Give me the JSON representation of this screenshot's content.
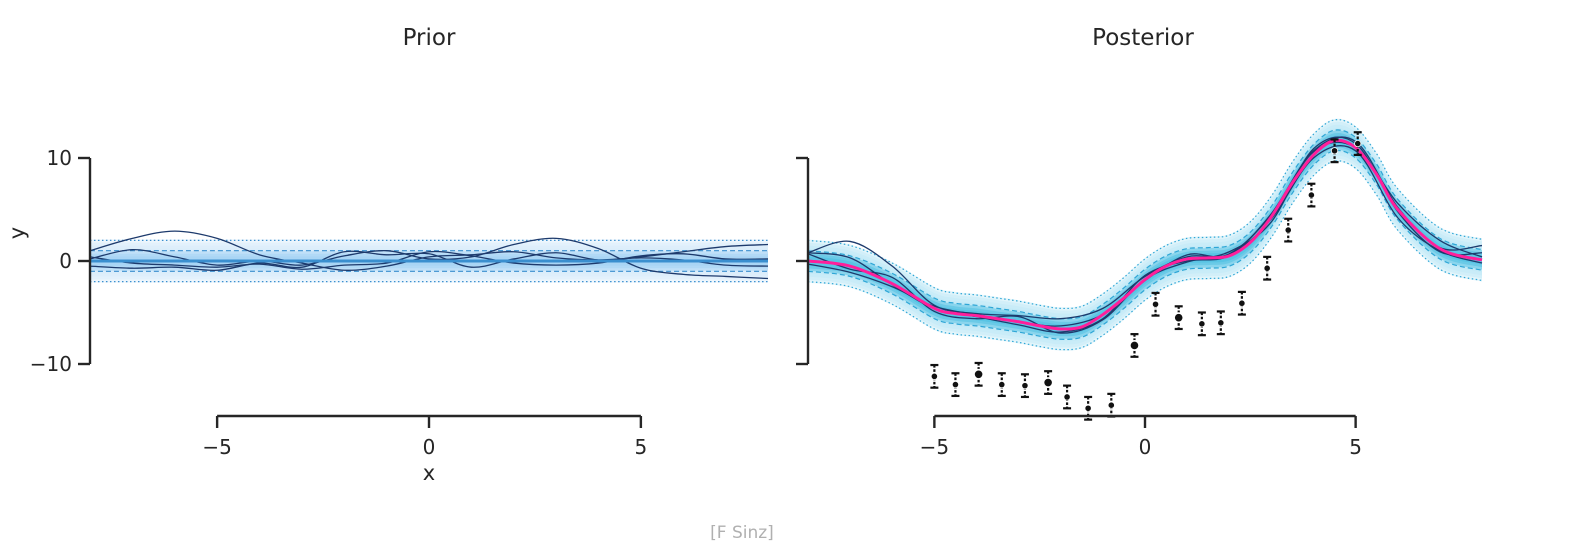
{
  "figure": {
    "credit": "[F Sinz]"
  },
  "chart_data": [
    {
      "type": "line",
      "title": "Prior",
      "xlabel": "x",
      "ylabel": "y",
      "xlim": [
        -8,
        8
      ],
      "ylim": [
        -10,
        10
      ],
      "x_ticks": [
        -5,
        0,
        5
      ],
      "x_tick_labels": [
        "−5",
        "0",
        "5"
      ],
      "y_ticks": [
        -10,
        0,
        10
      ],
      "y_tick_labels": [
        "−10",
        "0",
        "10"
      ],
      "grid": false,
      "legend": "none",
      "mean": {
        "x": [
          -8,
          8
        ],
        "y": [
          0,
          0
        ]
      },
      "band_std": 1.0,
      "band_levels_std": [
        1,
        2
      ],
      "samples": [
        {
          "x": [
            -8,
            -7,
            -6,
            -5,
            -4,
            -3,
            -2,
            -1,
            0,
            1,
            2,
            3,
            4,
            5,
            6,
            7,
            8
          ],
          "y": [
            1.0,
            2.2,
            2.9,
            2.2,
            0.6,
            -0.2,
            -0.9,
            -0.5,
            0.4,
            0.6,
            0.9,
            0.3,
            0.1,
            0.3,
            0.1,
            -0.4,
            -0.5
          ]
        },
        {
          "x": [
            -8,
            -7,
            -6,
            -5,
            -4,
            -3,
            -2,
            -1,
            0,
            1,
            2,
            3,
            4,
            5,
            6,
            7,
            8
          ],
          "y": [
            0.2,
            1.1,
            0.4,
            -0.4,
            0.0,
            -0.4,
            0.5,
            1.0,
            0.2,
            0.4,
            1.6,
            2.2,
            1.2,
            -0.7,
            -1.3,
            -1.5,
            -1.7
          ]
        },
        {
          "x": [
            -8,
            -7,
            -6,
            -5,
            -4,
            -3,
            -2,
            -1,
            0,
            1,
            2,
            3,
            4,
            5,
            6,
            7,
            8
          ],
          "y": [
            -0.5,
            -0.7,
            -0.6,
            -0.9,
            -0.2,
            -0.6,
            0.9,
            0.6,
            0.7,
            -0.6,
            0.2,
            0.8,
            0.1,
            0.4,
            0.9,
            1.4,
            1.6
          ]
        },
        {
          "x": [
            -8,
            -7,
            -6,
            -5,
            -4,
            -3,
            -2,
            -1,
            0,
            1,
            2,
            3,
            4,
            5,
            6,
            7,
            8
          ],
          "y": [
            0.4,
            -0.2,
            -0.4,
            -0.6,
            -0.3,
            -0.8,
            -0.4,
            -0.2,
            0.9,
            0.5,
            -0.2,
            -0.4,
            -0.2,
            0.5,
            0.7,
            0.2,
            0.2
          ]
        }
      ]
    },
    {
      "type": "line",
      "title": "Posterior",
      "xlabel": "",
      "ylabel": "",
      "xlim": [
        -8,
        8
      ],
      "ylim": [
        -10,
        10
      ],
      "x_ticks": [
        -5,
        0,
        5
      ],
      "x_tick_labels": [
        "−5",
        "0",
        "5"
      ],
      "y_ticks": [
        -10,
        0,
        10
      ],
      "grid": false,
      "legend": "none",
      "mean": {
        "x": [
          -8,
          -7,
          -6,
          -5,
          -4.5,
          -4,
          -3.5,
          -3,
          -2.5,
          -2,
          -1.5,
          -1,
          -0.5,
          0,
          0.5,
          1,
          1.5,
          2,
          2.5,
          3,
          3.5,
          4,
          4.5,
          5,
          5.5,
          6,
          7,
          8
        ],
        "y": [
          0,
          -0.5,
          -2.2,
          -4.6,
          -5.1,
          -5.3,
          -5.6,
          -5.9,
          -6.3,
          -6.6,
          -6.4,
          -5.2,
          -3.6,
          -1.8,
          -0.5,
          0.2,
          0.3,
          0.5,
          1.8,
          4.3,
          7.6,
          10.3,
          11.7,
          11.0,
          8.4,
          5.0,
          1.2,
          0.1
        ]
      },
      "band_std": 1.0,
      "band_levels_std": [
        1,
        2
      ],
      "samples": [
        {
          "x": [
            -8,
            -7,
            -6,
            -5,
            -4,
            -3,
            -2,
            -1,
            0,
            1,
            2,
            3,
            4,
            5,
            6,
            7,
            8
          ],
          "y": [
            0.8,
            1.9,
            -0.5,
            -4.3,
            -5.1,
            -5.3,
            -5.6,
            -4.6,
            -1.5,
            0.4,
            0.7,
            4.5,
            10.6,
            11.0,
            5.6,
            2.0,
            0.4
          ]
        },
        {
          "x": [
            -8,
            -7,
            -6,
            -5,
            -4,
            -3,
            -2,
            -1,
            0,
            1,
            2,
            3,
            4,
            5,
            6,
            7,
            8
          ],
          "y": [
            0.8,
            0.3,
            -2.3,
            -4.6,
            -5.4,
            -6.2,
            -6.9,
            -5.6,
            -1.4,
            0.0,
            0.5,
            4.1,
            10.0,
            10.7,
            4.2,
            1.0,
            -0.2
          ]
        },
        {
          "x": [
            -8,
            -7,
            -6,
            -5,
            -4,
            -3,
            -2,
            -1,
            0,
            1,
            2,
            3,
            4,
            5,
            6,
            7,
            8
          ],
          "y": [
            -0.3,
            -1.1,
            -2.5,
            -4.4,
            -5.2,
            -5.9,
            -6.3,
            -5.2,
            -1.9,
            0.6,
            0.6,
            4.6,
            10.7,
            11.6,
            5.2,
            1.3,
            1.5
          ]
        },
        {
          "x": [
            -8,
            -7,
            -6,
            -5,
            -4,
            -3,
            -2,
            -1,
            0,
            1,
            2,
            3,
            4,
            5,
            6,
            7,
            8
          ],
          "y": [
            0.7,
            -0.8,
            -1.6,
            -4.9,
            -5.6,
            -5.4,
            -7.0,
            -5.7,
            -1.8,
            -0.1,
            0.9,
            3.8,
            10.9,
            11.4,
            4.8,
            0.9,
            0.8
          ]
        }
      ],
      "observations": {
        "x": [
          -5.0,
          -4.5,
          -3.95,
          -3.4,
          -2.85,
          -2.3,
          -1.85,
          -1.35,
          -0.8,
          -0.25,
          0.25,
          0.8,
          1.35,
          1.8,
          2.3,
          2.9,
          3.4,
          3.95,
          4.5,
          5.05
        ],
        "y": [
          -11.2,
          -12.0,
          -11.0,
          -12.0,
          -12.1,
          -11.8,
          -13.2,
          -14.3,
          -14.0,
          -8.2,
          -4.2,
          -5.5,
          -6.1,
          -6.0,
          -4.1,
          -0.7,
          3.0,
          6.4,
          10.7,
          11.4
        ],
        "yerr": [
          1.1,
          1.1,
          1.1,
          1.1,
          1.1,
          1.1,
          1.1,
          1.1,
          1.1,
          1.1,
          1.1,
          1.1,
          1.1,
          1.1,
          1.1,
          1.1,
          1.1,
          1.1,
          1.1,
          1.1
        ],
        "highlighted": [
          false,
          false,
          true,
          false,
          false,
          true,
          false,
          false,
          false,
          true,
          false,
          true,
          false,
          false,
          false,
          false,
          false,
          false,
          false,
          false
        ]
      }
    }
  ],
  "colors": {
    "mean_prior": "#3a8fcf",
    "band_inner_prior": "#9fd1f3",
    "band_outer_prior": "#d6ecfa",
    "band_line_prior": "#3a8fcf",
    "mean_posterior": "#ff1f9b",
    "band_inner_posterior": "#45bde0",
    "band_outer_posterior": "#bfe9f6",
    "band_line_posterior": "#2ea6d6",
    "sample": "#1d3a6c",
    "point": "#111111",
    "axis": "#262626"
  }
}
